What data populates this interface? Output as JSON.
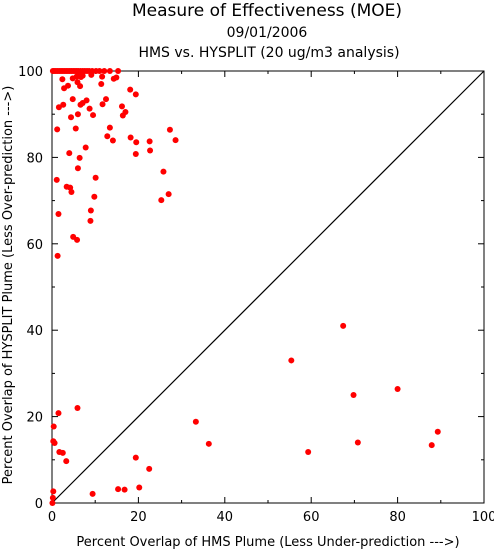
{
  "chart_data": {
    "type": "scatter",
    "title": "Measure of Effectiveness (MOE)",
    "date": "09/01/2006",
    "subtitle": "HMS vs. HYSPLIT  (20 ug/m3 analysis)",
    "xlabel": "Percent Overlap of HMS Plume (Less Under-prediction --->)",
    "ylabel": "Percent Overlap of HYSPLIT Plume (Less Over-prediction --->)",
    "xlim": [
      0,
      100
    ],
    "ylim": [
      0,
      100
    ],
    "xticks": [
      "0",
      "20",
      "40",
      "60",
      "80",
      "100"
    ],
    "yticks": [
      "0",
      "20",
      "40",
      "60",
      "80",
      "100"
    ],
    "grid": false,
    "reference_line": "y = x",
    "colors": {
      "points": "#ff0000",
      "axes": "#000000",
      "diagonal": "#000000"
    },
    "points": [
      [
        0.2,
        100
      ],
      [
        0.5,
        100
      ],
      [
        0.9,
        100
      ],
      [
        1.3,
        100
      ],
      [
        1.7,
        100
      ],
      [
        2.1,
        100
      ],
      [
        2.5,
        100
      ],
      [
        2.9,
        100
      ],
      [
        3.3,
        100
      ],
      [
        3.7,
        100
      ],
      [
        4.1,
        100
      ],
      [
        4.5,
        100
      ],
      [
        4.9,
        100
      ],
      [
        5.3,
        100
      ],
      [
        5.7,
        100
      ],
      [
        6.1,
        100
      ],
      [
        6.6,
        100
      ],
      [
        7.1,
        100
      ],
      [
        7.6,
        100
      ],
      [
        8.1,
        100
      ],
      [
        8.6,
        100
      ],
      [
        9.3,
        100
      ],
      [
        10.2,
        100
      ],
      [
        11.0,
        100
      ],
      [
        12.1,
        100
      ],
      [
        13.4,
        100
      ],
      [
        15.3,
        100
      ],
      [
        2.4,
        98.1
      ],
      [
        4.8,
        98.3
      ],
      [
        5.7,
        98.7
      ],
      [
        6.1,
        99.2
      ],
      [
        6.7,
        98.6
      ],
      [
        7.1,
        98.9
      ],
      [
        5.9,
        97.4
      ],
      [
        9.1,
        99.1
      ],
      [
        11.6,
        98.7
      ],
      [
        11.4,
        97.0
      ],
      [
        14.3,
        98.2
      ],
      [
        14.9,
        98.5
      ],
      [
        2.8,
        96.0
      ],
      [
        3.7,
        96.6
      ],
      [
        6.5,
        96.5
      ],
      [
        1.6,
        91.6
      ],
      [
        2.6,
        92.2
      ],
      [
        4.8,
        93.5
      ],
      [
        6.6,
        92.2
      ],
      [
        7.1,
        92.6
      ],
      [
        8.0,
        93.2
      ],
      [
        4.4,
        89.3
      ],
      [
        6.0,
        90.0
      ],
      [
        8.7,
        91.3
      ],
      [
        9.5,
        89.8
      ],
      [
        11.7,
        92.3
      ],
      [
        12.5,
        93.5
      ],
      [
        16.2,
        91.8
      ],
      [
        17.0,
        90.5
      ],
      [
        18.1,
        95.7
      ],
      [
        19.4,
        94.6
      ],
      [
        1.2,
        86.5
      ],
      [
        5.5,
        86.7
      ],
      [
        7.8,
        82.3
      ],
      [
        13.4,
        86.9
      ],
      [
        12.8,
        84.9
      ],
      [
        14.1,
        83.9
      ],
      [
        16.4,
        89.7
      ],
      [
        18.2,
        84.6
      ],
      [
        4.0,
        81.0
      ],
      [
        6.4,
        79.9
      ],
      [
        6.0,
        77.5
      ],
      [
        19.5,
        83.5
      ],
      [
        19.4,
        80.8
      ],
      [
        22.6,
        83.7
      ],
      [
        22.7,
        81.6
      ],
      [
        27.3,
        86.4
      ],
      [
        28.6,
        84.0
      ],
      [
        1.1,
        74.8
      ],
      [
        3.4,
        73.2
      ],
      [
        4.2,
        73.0
      ],
      [
        4.5,
        72.0
      ],
      [
        9.8,
        70.9
      ],
      [
        10.1,
        75.3
      ],
      [
        25.8,
        76.7
      ],
      [
        25.3,
        70.1
      ],
      [
        27.0,
        71.5
      ],
      [
        9.0,
        67.7
      ],
      [
        8.9,
        65.3
      ],
      [
        1.5,
        66.9
      ],
      [
        4.9,
        61.6
      ],
      [
        5.8,
        60.9
      ],
      [
        1.3,
        57.2
      ],
      [
        0.4,
        17.7
      ],
      [
        1.5,
        20.8
      ],
      [
        0.3,
        14.3
      ],
      [
        0.6,
        13.9
      ],
      [
        1.7,
        11.8
      ],
      [
        2.5,
        11.6
      ],
      [
        3.3,
        9.7
      ],
      [
        5.9,
        22.0
      ],
      [
        0.3,
        2.7
      ],
      [
        0.2,
        1.2
      ],
      [
        0.1,
        0.0
      ],
      [
        9.4,
        2.1
      ],
      [
        15.3,
        3.2
      ],
      [
        16.8,
        3.1
      ],
      [
        20.2,
        3.6
      ],
      [
        19.4,
        10.5
      ],
      [
        22.5,
        7.9
      ],
      [
        33.3,
        18.8
      ],
      [
        36.3,
        13.7
      ],
      [
        55.4,
        33.0
      ],
      [
        67.4,
        41.0
      ],
      [
        69.8,
        25.0
      ],
      [
        59.3,
        11.8
      ],
      [
        70.8,
        14.0
      ],
      [
        80.0,
        26.4
      ],
      [
        87.9,
        13.4
      ],
      [
        89.3,
        16.5
      ]
    ]
  }
}
